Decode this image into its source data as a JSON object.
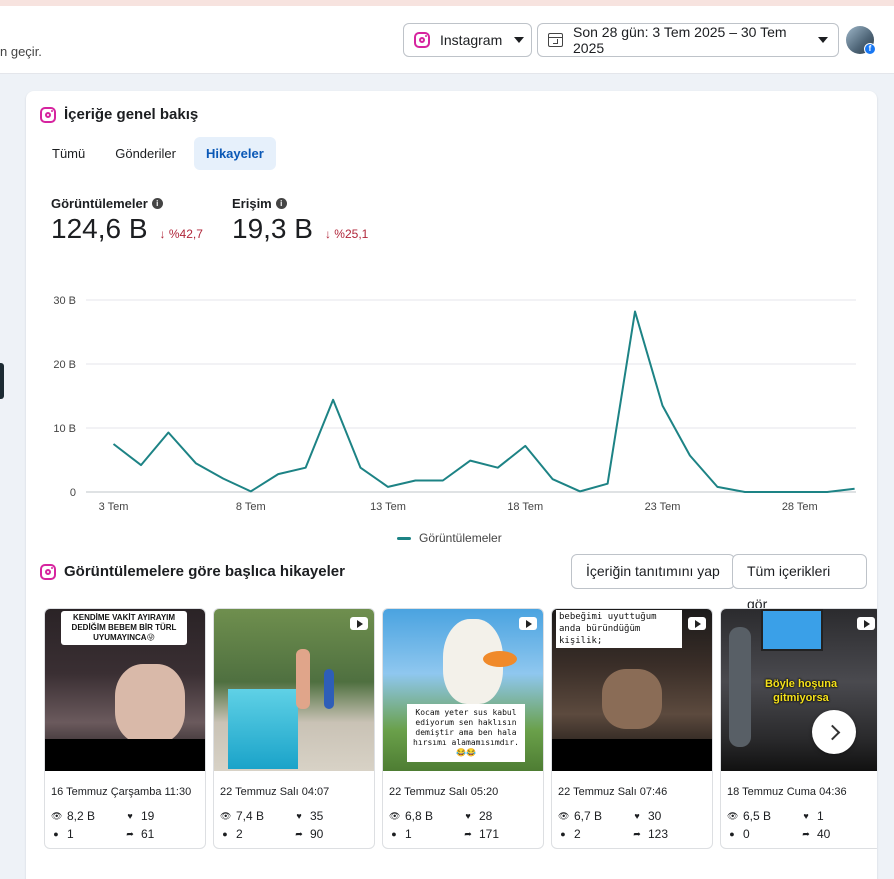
{
  "header": {
    "hint": "n geçir.",
    "platform_dropdown": "Instagram",
    "date_dropdown": "Son 28 gün: 3 Tem 2025 – 30 Tem 2025"
  },
  "overview": {
    "title": "İçeriğe genel bakış",
    "tabs": [
      {
        "label": "Tümü",
        "active": false
      },
      {
        "label": "Gönderiler",
        "active": false
      },
      {
        "label": "Hikayeler",
        "active": true
      }
    ],
    "metrics": [
      {
        "label": "Görüntülemeler",
        "value": "124,6 B",
        "delta": "%42,7",
        "direction": "down"
      },
      {
        "label": "Erişim",
        "value": "19,3 B",
        "delta": "%25,1",
        "direction": "down"
      }
    ]
  },
  "chart_data": {
    "type": "line",
    "x": [
      "3 Tem",
      "4 Tem",
      "5 Tem",
      "6 Tem",
      "7 Tem",
      "8 Tem",
      "9 Tem",
      "10 Tem",
      "11 Tem",
      "12 Tem",
      "13 Tem",
      "14 Tem",
      "15 Tem",
      "16 Tem",
      "17 Tem",
      "18 Tem",
      "19 Tem",
      "20 Tem",
      "21 Tem",
      "22 Tem",
      "23 Tem",
      "24 Tem",
      "25 Tem",
      "26 Tem",
      "27 Tem",
      "28 Tem",
      "29 Tem",
      "30 Tem"
    ],
    "x_tick_labels": [
      "3 Tem",
      "8 Tem",
      "13 Tem",
      "18 Tem",
      "23 Tem",
      "28 Tem"
    ],
    "y_tick_labels": [
      "0",
      "10 B",
      "20 B",
      "30 B"
    ],
    "ylim": [
      0,
      30
    ],
    "grid": true,
    "legend": "bottom",
    "series": [
      {
        "name": "Görüntülemeler",
        "color": "#1d8385",
        "values": [
          7.5,
          4.2,
          9.3,
          4.5,
          2.1,
          0.1,
          2.8,
          3.8,
          14.4,
          3.8,
          0.8,
          1.8,
          1.8,
          4.9,
          3.8,
          7.2,
          2.0,
          0.1,
          1.3,
          28.2,
          13.5,
          5.7,
          0.8,
          0.0,
          0.0,
          0.0,
          0.0,
          0.5
        ]
      }
    ]
  },
  "top_stories": {
    "title": "Görüntülemelere göre başlıca hikayeler",
    "promote_button": "İçeriğin tanıtımını yap",
    "all_button": "Tüm içerikleri gör",
    "items": [
      {
        "date": "16 Temmuz Çarşamba 11:30",
        "views": "8,2 B",
        "likes": "19",
        "replies": "1",
        "shares": "61",
        "caption": "KENDİME VAKİT AYIRAYIM DEDİĞİM BEBEM BİR TÜRL UYUMAYINCA😜"
      },
      {
        "date": "22 Temmuz Salı 04:07",
        "views": "7,4 B",
        "likes": "35",
        "replies": "2",
        "shares": "90",
        "caption": ""
      },
      {
        "date": "22 Temmuz Salı 05:20",
        "views": "6,8 B",
        "likes": "28",
        "replies": "1",
        "shares": "171",
        "caption": "Kocam yeter sus kabul ediyorum sen haklısın demiştir ama ben hala hırsımı alamamısımdır.😂😂"
      },
      {
        "date": "22 Temmuz Salı 07:46",
        "views": "6,7 B",
        "likes": "30",
        "replies": "2",
        "shares": "123",
        "caption": "bebeğimi uyuttuğum anda büründüğüm kişilik;"
      },
      {
        "date": "18 Temmuz Cuma 04:36",
        "views": "6,5 B",
        "likes": "1",
        "replies": "0",
        "shares": "40",
        "caption": "Böyle hoşuna gitmiyorsa"
      }
    ]
  },
  "colors": {
    "accent": "#0a58b6",
    "chart_line": "#1d8385",
    "negative": "#b0263a"
  }
}
